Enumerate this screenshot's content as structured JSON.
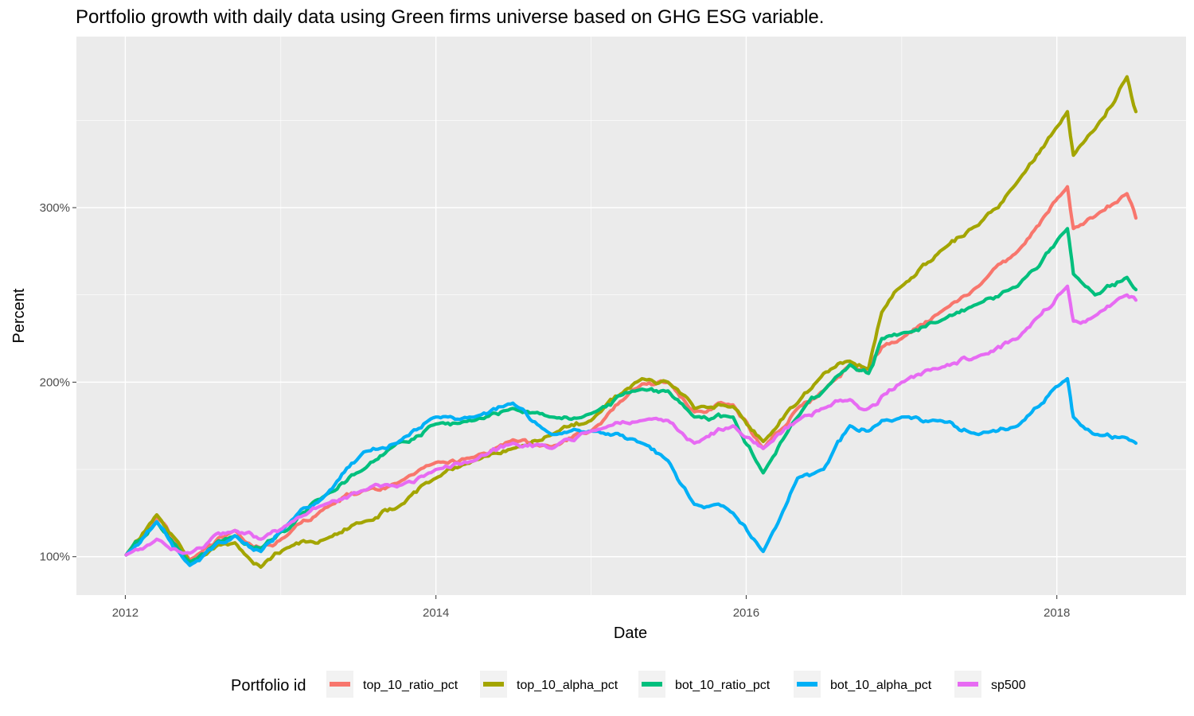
{
  "chart_data": {
    "type": "line",
    "title": "Portfolio growth with daily data using Green firms universe based on GHG ESG variable.",
    "xlabel": "Date",
    "ylabel": "Percent",
    "x_ticks": [
      "2012",
      "2014",
      "2016",
      "2018"
    ],
    "y_ticks": [
      "100%",
      "200%",
      "300%"
    ],
    "xlim": [
      "2011-09-08",
      "2018-11-01"
    ],
    "ylim": [
      0.78,
      3.98
    ],
    "grid": true,
    "legend": {
      "title": "Portfolio id",
      "position": "bottom"
    },
    "series": [
      {
        "name": "top_10_ratio_pct",
        "color": "#F8766D",
        "points": [
          [
            "2012-01-03",
            1.01
          ],
          [
            "2012-03-15",
            1.23
          ],
          [
            "2012-06-01",
            0.98
          ],
          [
            "2012-09-15",
            1.15
          ],
          [
            "2012-11-15",
            1.05
          ],
          [
            "2013-01-15",
            1.12
          ],
          [
            "2013-04-15",
            1.28
          ],
          [
            "2013-07-15",
            1.38
          ],
          [
            "2013-10-01",
            1.42
          ],
          [
            "2014-01-01",
            1.54
          ],
          [
            "2014-04-01",
            1.57
          ],
          [
            "2014-07-01",
            1.67
          ],
          [
            "2014-10-01",
            1.63
          ],
          [
            "2015-01-01",
            1.72
          ],
          [
            "2015-05-01",
            1.99
          ],
          [
            "2015-07-01",
            2.0
          ],
          [
            "2015-09-01",
            1.83
          ],
          [
            "2015-12-01",
            1.87
          ],
          [
            "2016-02-10",
            1.62
          ],
          [
            "2016-05-01",
            1.85
          ],
          [
            "2016-07-01",
            1.95
          ],
          [
            "2016-09-01",
            2.1
          ],
          [
            "2016-10-15",
            2.07
          ],
          [
            "2016-11-15",
            2.2
          ],
          [
            "2017-01-01",
            2.25
          ],
          [
            "2017-04-01",
            2.4
          ],
          [
            "2017-07-01",
            2.55
          ],
          [
            "2017-10-01",
            2.75
          ],
          [
            "2018-01-26",
            3.12
          ],
          [
            "2018-02-09",
            2.88
          ],
          [
            "2018-04-01",
            2.95
          ],
          [
            "2018-06-15",
            3.08
          ],
          [
            "2018-07-06",
            2.94
          ]
        ]
      },
      {
        "name": "top_10_alpha_pct",
        "color": "#A3A500",
        "points": [
          [
            "2012-01-03",
            1.01
          ],
          [
            "2012-03-15",
            1.24
          ],
          [
            "2012-06-01",
            0.97
          ],
          [
            "2012-09-15",
            1.08
          ],
          [
            "2012-11-15",
            0.94
          ],
          [
            "2013-01-15",
            1.05
          ],
          [
            "2013-04-15",
            1.1
          ],
          [
            "2013-07-15",
            1.2
          ],
          [
            "2013-10-01",
            1.28
          ],
          [
            "2014-01-01",
            1.45
          ],
          [
            "2014-04-01",
            1.55
          ],
          [
            "2014-07-01",
            1.62
          ],
          [
            "2014-10-01",
            1.7
          ],
          [
            "2015-01-01",
            1.78
          ],
          [
            "2015-05-01",
            2.02
          ],
          [
            "2015-07-01",
            2.0
          ],
          [
            "2015-09-01",
            1.85
          ],
          [
            "2015-12-01",
            1.86
          ],
          [
            "2016-02-10",
            1.66
          ],
          [
            "2016-05-01",
            1.88
          ],
          [
            "2016-07-01",
            2.05
          ],
          [
            "2016-09-01",
            2.12
          ],
          [
            "2016-10-15",
            2.08
          ],
          [
            "2016-11-15",
            2.4
          ],
          [
            "2017-01-01",
            2.55
          ],
          [
            "2017-04-01",
            2.75
          ],
          [
            "2017-07-01",
            2.9
          ],
          [
            "2017-10-01",
            3.15
          ],
          [
            "2018-01-26",
            3.55
          ],
          [
            "2018-02-09",
            3.3
          ],
          [
            "2018-04-01",
            3.45
          ],
          [
            "2018-06-15",
            3.75
          ],
          [
            "2018-07-06",
            3.55
          ]
        ]
      },
      {
        "name": "bot_10_ratio_pct",
        "color": "#00BF7D",
        "points": [
          [
            "2012-01-03",
            1.01
          ],
          [
            "2012-03-15",
            1.2
          ],
          [
            "2012-06-01",
            0.97
          ],
          [
            "2012-09-15",
            1.12
          ],
          [
            "2012-11-15",
            1.05
          ],
          [
            "2013-01-15",
            1.15
          ],
          [
            "2013-04-15",
            1.35
          ],
          [
            "2013-07-15",
            1.5
          ],
          [
            "2013-10-01",
            1.65
          ],
          [
            "2014-01-01",
            1.76
          ],
          [
            "2014-04-01",
            1.78
          ],
          [
            "2014-07-01",
            1.85
          ],
          [
            "2014-10-01",
            1.8
          ],
          [
            "2015-01-01",
            1.82
          ],
          [
            "2015-05-01",
            1.96
          ],
          [
            "2015-07-01",
            1.95
          ],
          [
            "2015-09-01",
            1.8
          ],
          [
            "2015-12-01",
            1.8
          ],
          [
            "2016-02-10",
            1.48
          ],
          [
            "2016-05-01",
            1.8
          ],
          [
            "2016-07-01",
            1.95
          ],
          [
            "2016-09-01",
            2.1
          ],
          [
            "2016-10-15",
            2.05
          ],
          [
            "2016-11-15",
            2.25
          ],
          [
            "2017-01-01",
            2.28
          ],
          [
            "2017-04-01",
            2.35
          ],
          [
            "2017-07-01",
            2.45
          ],
          [
            "2017-10-01",
            2.55
          ],
          [
            "2018-01-26",
            2.88
          ],
          [
            "2018-02-09",
            2.62
          ],
          [
            "2018-04-01",
            2.5
          ],
          [
            "2018-06-15",
            2.6
          ],
          [
            "2018-07-06",
            2.53
          ]
        ]
      },
      {
        "name": "bot_10_alpha_pct",
        "color": "#00B0F6",
        "points": [
          [
            "2012-01-03",
            1.01
          ],
          [
            "2012-03-15",
            1.2
          ],
          [
            "2012-06-01",
            0.95
          ],
          [
            "2012-09-15",
            1.12
          ],
          [
            "2012-11-15",
            1.03
          ],
          [
            "2013-01-15",
            1.18
          ],
          [
            "2013-04-15",
            1.35
          ],
          [
            "2013-07-15",
            1.6
          ],
          [
            "2013-10-01",
            1.65
          ],
          [
            "2014-01-01",
            1.8
          ],
          [
            "2014-04-01",
            1.8
          ],
          [
            "2014-07-01",
            1.88
          ],
          [
            "2014-10-01",
            1.7
          ],
          [
            "2015-01-01",
            1.72
          ],
          [
            "2015-05-01",
            1.65
          ],
          [
            "2015-07-01",
            1.55
          ],
          [
            "2015-09-01",
            1.3
          ],
          [
            "2015-12-01",
            1.25
          ],
          [
            "2016-02-10",
            1.03
          ],
          [
            "2016-05-01",
            1.45
          ],
          [
            "2016-07-01",
            1.5
          ],
          [
            "2016-09-01",
            1.75
          ],
          [
            "2016-10-15",
            1.72
          ],
          [
            "2016-11-15",
            1.78
          ],
          [
            "2017-01-01",
            1.8
          ],
          [
            "2017-04-01",
            1.78
          ],
          [
            "2017-07-01",
            1.7
          ],
          [
            "2017-10-01",
            1.75
          ],
          [
            "2018-01-26",
            2.02
          ],
          [
            "2018-02-09",
            1.8
          ],
          [
            "2018-04-01",
            1.7
          ],
          [
            "2018-06-15",
            1.68
          ],
          [
            "2018-07-06",
            1.65
          ]
        ]
      },
      {
        "name": "sp500",
        "color": "#E76BF3",
        "points": [
          [
            "2012-01-03",
            1.01
          ],
          [
            "2012-03-15",
            1.1
          ],
          [
            "2012-06-01",
            1.02
          ],
          [
            "2012-09-15",
            1.15
          ],
          [
            "2012-11-15",
            1.1
          ],
          [
            "2013-01-15",
            1.18
          ],
          [
            "2013-04-15",
            1.3
          ],
          [
            "2013-07-15",
            1.38
          ],
          [
            "2013-10-01",
            1.4
          ],
          [
            "2014-01-01",
            1.5
          ],
          [
            "2014-04-01",
            1.55
          ],
          [
            "2014-07-01",
            1.65
          ],
          [
            "2014-10-01",
            1.62
          ],
          [
            "2015-01-01",
            1.72
          ],
          [
            "2015-05-01",
            1.78
          ],
          [
            "2015-07-01",
            1.78
          ],
          [
            "2015-09-01",
            1.65
          ],
          [
            "2015-12-01",
            1.75
          ],
          [
            "2016-02-10",
            1.62
          ],
          [
            "2016-05-01",
            1.78
          ],
          [
            "2016-07-01",
            1.85
          ],
          [
            "2016-09-01",
            1.9
          ],
          [
            "2016-10-15",
            1.85
          ],
          [
            "2016-11-15",
            1.92
          ],
          [
            "2017-01-01",
            2.0
          ],
          [
            "2017-04-01",
            2.08
          ],
          [
            "2017-07-01",
            2.15
          ],
          [
            "2017-10-01",
            2.25
          ],
          [
            "2018-01-26",
            2.55
          ],
          [
            "2018-02-09",
            2.35
          ],
          [
            "2018-04-01",
            2.38
          ],
          [
            "2018-06-15",
            2.5
          ],
          [
            "2018-07-06",
            2.47
          ]
        ]
      }
    ]
  }
}
